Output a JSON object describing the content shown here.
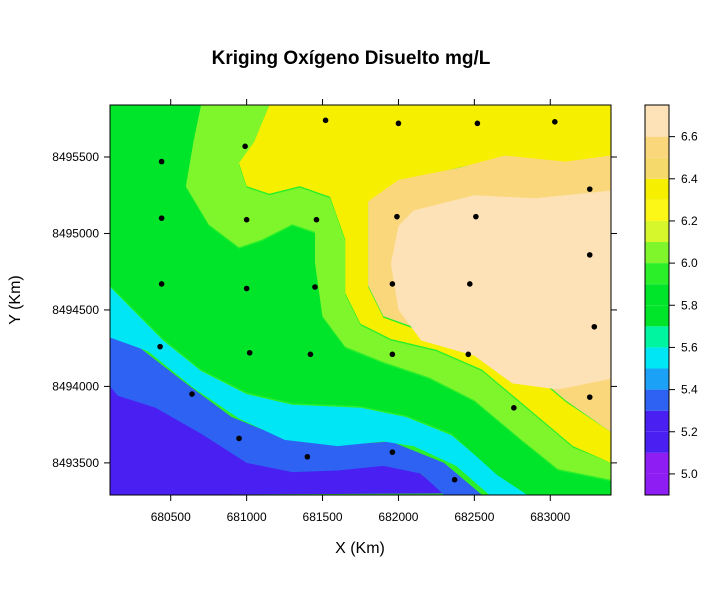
{
  "chart_data": {
    "type": "heatmap",
    "title": "Kriging Oxígeno Disuelto mg/L",
    "xlabel": "X (Km)",
    "ylabel": "Y (Km)",
    "xlim": [
      680100,
      683400
    ],
    "ylim": [
      8493290,
      8495840
    ],
    "xticks": [
      680500,
      681000,
      681500,
      682000,
      682500,
      683000
    ],
    "yticks": [
      8493500,
      8494000,
      8494500,
      8495000,
      8495500
    ],
    "colorbar": {
      "breaks": [
        4.9,
        5.0,
        5.1,
        5.2,
        5.3,
        5.4,
        5.5,
        5.6,
        5.7,
        5.8,
        5.9,
        6.0,
        6.1,
        6.2,
        6.3,
        6.4,
        6.5,
        6.6,
        6.7,
        6.75
      ],
      "colors": [
        "#8D1DF2",
        "#8D1DF2",
        "#4A1FF2",
        "#4A1FF2",
        "#2D62F2",
        "#1BA2F7",
        "#00E6F5",
        "#00F5A0",
        "#00E52A",
        "#00E52A",
        "#2BEF29",
        "#7FF62C",
        "#D6F72C",
        "#FDF718",
        "#F6F000",
        "#F6D96B",
        "#FBD77C",
        "#FCE2B6",
        "#FCE2B6"
      ],
      "ticks": [
        5.0,
        5.2,
        5.4,
        5.6,
        5.8,
        6.0,
        6.2,
        6.4,
        6.6
      ]
    },
    "sample_points": [
      {
        "x": 681520,
        "y": 8495740
      },
      {
        "x": 682000,
        "y": 8495720
      },
      {
        "x": 682520,
        "y": 8495720
      },
      {
        "x": 683030,
        "y": 8495730
      },
      {
        "x": 680440,
        "y": 8495470
      },
      {
        "x": 680990,
        "y": 8495570
      },
      {
        "x": 683260,
        "y": 8495290
      },
      {
        "x": 680440,
        "y": 8495100
      },
      {
        "x": 681000,
        "y": 8495090
      },
      {
        "x": 681460,
        "y": 8495090
      },
      {
        "x": 681990,
        "y": 8495110
      },
      {
        "x": 682510,
        "y": 8495110
      },
      {
        "x": 680440,
        "y": 8494670
      },
      {
        "x": 681000,
        "y": 8494640
      },
      {
        "x": 681450,
        "y": 8494650
      },
      {
        "x": 681960,
        "y": 8494670
      },
      {
        "x": 682470,
        "y": 8494670
      },
      {
        "x": 683260,
        "y": 8494860
      },
      {
        "x": 680430,
        "y": 8494260
      },
      {
        "x": 681020,
        "y": 8494220
      },
      {
        "x": 681420,
        "y": 8494210
      },
      {
        "x": 681960,
        "y": 8494210
      },
      {
        "x": 682460,
        "y": 8494210
      },
      {
        "x": 683290,
        "y": 8494390
      },
      {
        "x": 680640,
        "y": 8493950
      },
      {
        "x": 680950,
        "y": 8493660
      },
      {
        "x": 681400,
        "y": 8493540
      },
      {
        "x": 681960,
        "y": 8493570
      },
      {
        "x": 682370,
        "y": 8493390
      },
      {
        "x": 682760,
        "y": 8493860
      },
      {
        "x": 683260,
        "y": 8493930
      }
    ],
    "surface_regions": [
      {
        "value": 5.15,
        "ring": [
          [
            680100,
            8494100
          ],
          [
            680150,
            8493950
          ],
          [
            680400,
            8493870
          ],
          [
            680700,
            8493700
          ],
          [
            681000,
            8493520
          ],
          [
            681400,
            8493460
          ],
          [
            681800,
            8493500
          ],
          [
            682100,
            8493470
          ],
          [
            682300,
            8493300
          ],
          [
            680100,
            8493290
          ]
        ]
      },
      {
        "value": 5.35,
        "ring": [
          [
            680100,
            8494330
          ],
          [
            680300,
            8494250
          ],
          [
            680600,
            8494020
          ],
          [
            680900,
            8493800
          ],
          [
            681200,
            8493680
          ],
          [
            681650,
            8493620
          ],
          [
            681950,
            8493640
          ],
          [
            682300,
            8493500
          ],
          [
            682550,
            8493290
          ],
          [
            682300,
            8493290
          ],
          [
            682150,
            8493430
          ],
          [
            681900,
            8493480
          ],
          [
            681600,
            8493450
          ],
          [
            681300,
            8493440
          ],
          [
            681000,
            8493500
          ],
          [
            680700,
            8493690
          ],
          [
            680400,
            8493860
          ],
          [
            680150,
            8493940
          ],
          [
            680100,
            8494000
          ]
        ]
      },
      {
        "value": 5.55,
        "ring": [
          [
            680100,
            8494650
          ],
          [
            680200,
            8494550
          ],
          [
            680450,
            8494300
          ],
          [
            680700,
            8494100
          ],
          [
            681000,
            8493950
          ],
          [
            681300,
            8493880
          ],
          [
            681750,
            8493860
          ],
          [
            682050,
            8493800
          ],
          [
            682350,
            8493680
          ],
          [
            682650,
            8493430
          ],
          [
            682850,
            8493290
          ],
          [
            682600,
            8493290
          ],
          [
            682380,
            8493480
          ],
          [
            682100,
            8493610
          ],
          [
            681900,
            8493640
          ],
          [
            681600,
            8493610
          ],
          [
            681250,
            8493650
          ],
          [
            680950,
            8493790
          ],
          [
            680650,
            8493990
          ],
          [
            680350,
            8494230
          ],
          [
            680100,
            8494320
          ]
        ]
      },
      {
        "value": 5.85,
        "ring": [
          [
            680100,
            8495840
          ],
          [
            680700,
            8495840
          ],
          [
            680650,
            8495600
          ],
          [
            680600,
            8495300
          ],
          [
            680750,
            8495050
          ],
          [
            680950,
            8494900
          ],
          [
            681100,
            8494950
          ],
          [
            681300,
            8495050
          ],
          [
            681450,
            8495000
          ],
          [
            681450,
            8494800
          ],
          [
            681500,
            8494450
          ],
          [
            681650,
            8494250
          ],
          [
            681900,
            8494150
          ],
          [
            682200,
            8494050
          ],
          [
            682500,
            8493900
          ],
          [
            682800,
            8493650
          ],
          [
            683050,
            8493450
          ],
          [
            683400,
            8493380
          ],
          [
            683400,
            8493290
          ],
          [
            682850,
            8493290
          ],
          [
            682650,
            8493420
          ],
          [
            682350,
            8493690
          ],
          [
            682050,
            8493810
          ],
          [
            681750,
            8493870
          ],
          [
            681300,
            8493890
          ],
          [
            681000,
            8493960
          ],
          [
            680700,
            8494110
          ],
          [
            680450,
            8494310
          ],
          [
            680200,
            8494560
          ],
          [
            680100,
            8494660
          ]
        ]
      },
      {
        "value": 6.05,
        "ring": [
          [
            680700,
            8495840
          ],
          [
            681150,
            8495840
          ],
          [
            681050,
            8495600
          ],
          [
            680950,
            8495450
          ],
          [
            681000,
            8495300
          ],
          [
            681150,
            8495250
          ],
          [
            681350,
            8495300
          ],
          [
            681550,
            8495230
          ],
          [
            681650,
            8494950
          ],
          [
            681650,
            8494600
          ],
          [
            681750,
            8494400
          ],
          [
            681950,
            8494300
          ],
          [
            682250,
            8494230
          ],
          [
            682550,
            8494100
          ],
          [
            682850,
            8493850
          ],
          [
            683150,
            8493600
          ],
          [
            683400,
            8493500
          ],
          [
            683400,
            8493390
          ],
          [
            683050,
            8493460
          ],
          [
            682800,
            8493660
          ],
          [
            682500,
            8493910
          ],
          [
            682200,
            8494060
          ],
          [
            681900,
            8494160
          ],
          [
            681650,
            8494260
          ],
          [
            681500,
            8494460
          ],
          [
            681450,
            8494810
          ],
          [
            681450,
            8495010
          ],
          [
            681300,
            8495060
          ],
          [
            681100,
            8494960
          ],
          [
            680950,
            8494910
          ],
          [
            680750,
            8495060
          ],
          [
            680600,
            8495310
          ],
          [
            680650,
            8495600
          ]
        ]
      },
      {
        "value": 6.3,
        "ring": [
          [
            681150,
            8495840
          ],
          [
            683400,
            8495840
          ],
          [
            683400,
            8495500
          ],
          [
            683100,
            8495460
          ],
          [
            682700,
            8495500
          ],
          [
            682350,
            8495420
          ],
          [
            682000,
            8495340
          ],
          [
            681800,
            8495200
          ],
          [
            681800,
            8494900
          ],
          [
            681800,
            8494650
          ],
          [
            681900,
            8494450
          ],
          [
            682150,
            8494360
          ],
          [
            682500,
            8494300
          ],
          [
            682800,
            8494150
          ],
          [
            683100,
            8493900
          ],
          [
            683400,
            8493700
          ],
          [
            683400,
            8493500
          ],
          [
            683150,
            8493610
          ],
          [
            682850,
            8493860
          ],
          [
            682550,
            8494110
          ],
          [
            682250,
            8494240
          ],
          [
            681950,
            8494310
          ],
          [
            681750,
            8494410
          ],
          [
            681650,
            8494610
          ],
          [
            681650,
            8494960
          ],
          [
            681550,
            8495240
          ],
          [
            681350,
            8495310
          ],
          [
            681150,
            8495260
          ],
          [
            681000,
            8495310
          ],
          [
            680950,
            8495460
          ],
          [
            681050,
            8495600
          ]
        ]
      },
      {
        "value": 6.55,
        "ring": [
          [
            682000,
            8495350
          ],
          [
            682400,
            8495430
          ],
          [
            682700,
            8495510
          ],
          [
            683100,
            8495470
          ],
          [
            683400,
            8495510
          ],
          [
            683400,
            8493700
          ],
          [
            683100,
            8493910
          ],
          [
            682800,
            8494160
          ],
          [
            682500,
            8494310
          ],
          [
            682150,
            8494370
          ],
          [
            681900,
            8494460
          ],
          [
            681800,
            8494660
          ],
          [
            681800,
            8495210
          ]
        ]
      },
      {
        "value": 6.7,
        "ring": [
          [
            682100,
            8495150
          ],
          [
            682500,
            8495250
          ],
          [
            682900,
            8495230
          ],
          [
            683400,
            8495280
          ],
          [
            683400,
            8494050
          ],
          [
            683050,
            8493980
          ],
          [
            682750,
            8494020
          ],
          [
            682500,
            8494200
          ],
          [
            682150,
            8494300
          ],
          [
            682000,
            8494500
          ],
          [
            681950,
            8494800
          ],
          [
            682000,
            8495050
          ]
        ]
      }
    ]
  }
}
